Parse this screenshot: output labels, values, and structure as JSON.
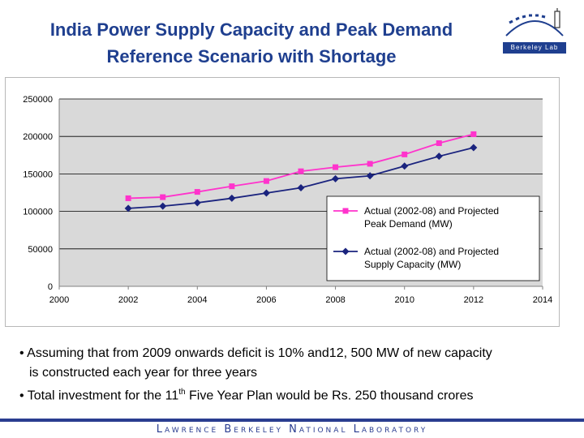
{
  "slide": {
    "title_line1": "India Power Supply Capacity and Peak Demand",
    "title_line2": "Reference Scenario with Shortage",
    "logo_text": "Berkeley Lab",
    "bullet1_line1": "• Assuming that from 2009 onwards deficit is 10% and12, 500 MW of new capacity",
    "bullet1_line2": "is constructed each year for three years",
    "bullet2_pre": "• Total investment for the 11",
    "bullet2_sup": "th",
    "bullet2_post": " Five Year Plan would be Rs. 250 thousand crores",
    "footer": "Lawrence Berkeley National Laboratory"
  },
  "colors": {
    "title": "#1f3f8f",
    "demand": "#ff33cc",
    "capacity": "#1a237e",
    "plot_bg": "#d9d9d9"
  },
  "chart_data": {
    "type": "line",
    "xlim": [
      2000,
      2014
    ],
    "ylim": [
      0,
      250000
    ],
    "x_ticks": [
      "2000",
      "2002",
      "2004",
      "2006",
      "2008",
      "2010",
      "2012",
      "2014"
    ],
    "y_ticks": [
      "250000",
      "200000",
      "150000",
      "100000",
      "50000",
      "0"
    ],
    "grid": true,
    "legend_position": "center-right",
    "series": [
      {
        "name": "Actual (2002-08) and Projected Peak Demand (MW)",
        "legend_line1": "Actual (2002-08) and Projected",
        "legend_line2": "Peak Demand (MW)",
        "marker": "square",
        "color": "#ff33cc",
        "x": [
          2002,
          2003,
          2004,
          2005,
          2006,
          2007,
          2008,
          2009,
          2010,
          2011,
          2012
        ],
        "y": [
          117500,
          119000,
          126000,
          133500,
          140500,
          153500,
          159000,
          163500,
          176000,
          191000,
          203000
        ]
      },
      {
        "name": "Actual (2002-08) and Projected Supply Capacity (MW)",
        "legend_line1": "Actual (2002-08) and Projected",
        "legend_line2": "Supply Capacity (MW)",
        "marker": "diamond",
        "color": "#1a237e",
        "x": [
          2002,
          2003,
          2004,
          2005,
          2006,
          2007,
          2008,
          2009,
          2010,
          2011,
          2012
        ],
        "y": [
          104000,
          107000,
          111500,
          117500,
          124500,
          131500,
          143500,
          147500,
          160500,
          173500,
          185000
        ]
      }
    ]
  }
}
